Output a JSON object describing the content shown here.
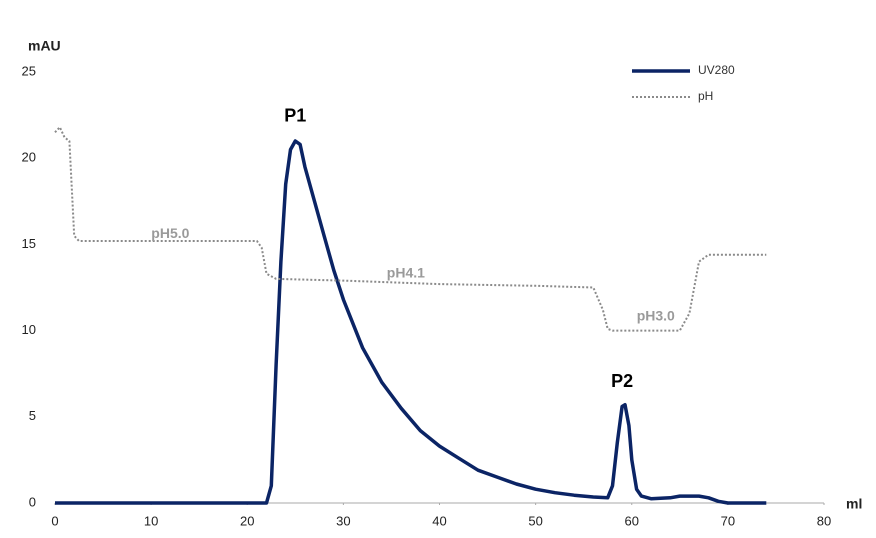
{
  "chart_data": {
    "type": "line",
    "y_label": "mAU",
    "x_label": "ml",
    "xlim": [
      0,
      80
    ],
    "xticks": [
      0,
      10,
      20,
      30,
      40,
      50,
      60,
      70,
      80
    ],
    "ylim": [
      0,
      25
    ],
    "yticks": [
      0,
      5,
      10,
      15,
      20,
      25
    ],
    "grid": false,
    "legend": "upper right",
    "series": [
      {
        "name": "UV280",
        "color": "#0b2465",
        "style": "solid",
        "x": [
          0,
          22,
          22.5,
          23,
          23.5,
          24,
          24.5,
          25,
          25.5,
          26,
          27,
          28,
          29,
          30,
          32,
          34,
          36,
          38,
          40,
          42,
          44,
          46,
          48,
          50,
          52,
          54,
          56,
          57.5,
          58,
          58.5,
          59,
          59.3,
          59.7,
          60,
          60.5,
          61,
          62,
          64,
          65,
          67,
          68,
          69,
          70,
          74
        ],
        "values": [
          0,
          0,
          1,
          8,
          14,
          18.5,
          20.5,
          21,
          20.8,
          19.5,
          17.5,
          15.5,
          13.5,
          11.8,
          9,
          7,
          5.5,
          4.2,
          3.3,
          2.6,
          1.9,
          1.5,
          1.1,
          0.8,
          0.6,
          0.45,
          0.35,
          0.3,
          1,
          3.5,
          5.6,
          5.7,
          4.5,
          2.5,
          0.8,
          0.4,
          0.25,
          0.3,
          0.4,
          0.4,
          0.3,
          0.1,
          0,
          0
        ]
      },
      {
        "name": "pH",
        "color": "#8a8a8a",
        "style": "dotted",
        "x": [
          0,
          0.5,
          1,
          1.5,
          2,
          2.5,
          21,
          21.5,
          22,
          23,
          30,
          40,
          50,
          56,
          57,
          57.5,
          58,
          65,
          66,
          67,
          68,
          74
        ],
        "values": [
          21.5,
          21.8,
          21.2,
          21,
          15.5,
          15.2,
          15.2,
          14.8,
          13.3,
          13,
          12.9,
          12.7,
          12.6,
          12.5,
          11.2,
          10.1,
          10,
          10,
          11,
          14,
          14.4,
          14.4
        ]
      }
    ],
    "annotations": [
      {
        "text": "P1",
        "x": 25,
        "y": 22.4,
        "kind": "peak"
      },
      {
        "text": "P2",
        "x": 59,
        "y": 7
      },
      {
        "text": "pH5.0",
        "x": 12,
        "y": 15.6,
        "kind": "ph"
      },
      {
        "text": "pH4.1",
        "x": 36.5,
        "y": 13.3,
        "kind": "ph"
      },
      {
        "text": "pH3.0",
        "x": 62.5,
        "y": 10.8,
        "kind": "ph"
      }
    ]
  }
}
